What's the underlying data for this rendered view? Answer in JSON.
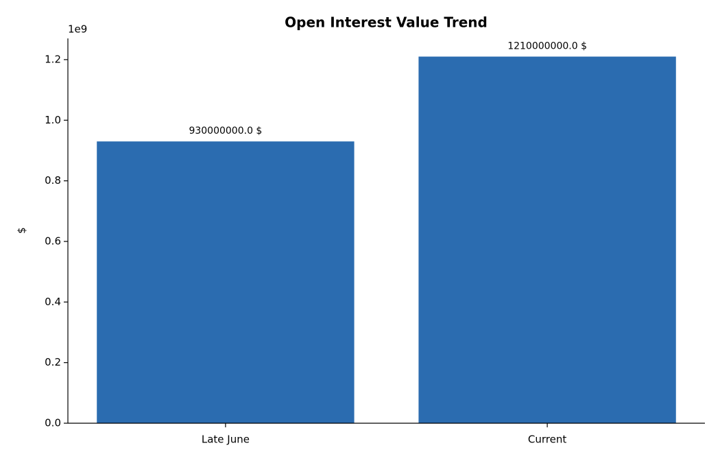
{
  "chart_data": {
    "type": "bar",
    "title": "Open Interest Value Trend",
    "y_label": "$",
    "y_offset_label": "1e9",
    "categories": [
      "Late June",
      "Current"
    ],
    "values": [
      930000000,
      1210000000
    ],
    "value_labels": [
      "930000000.0 $",
      "1210000000.0 $"
    ],
    "color": "#2b6cb0",
    "ylim": [
      0,
      1270000000
    ],
    "yticks": [
      {
        "value": 0,
        "label": "0.0"
      },
      {
        "value": 200000000,
        "label": "0.2"
      },
      {
        "value": 400000000,
        "label": "0.4"
      },
      {
        "value": 600000000,
        "label": "0.6"
      },
      {
        "value": 800000000,
        "label": "0.8"
      },
      {
        "value": 1000000000,
        "label": "1.0"
      },
      {
        "value": 1200000000,
        "label": "1.2"
      }
    ],
    "grid": false
  }
}
